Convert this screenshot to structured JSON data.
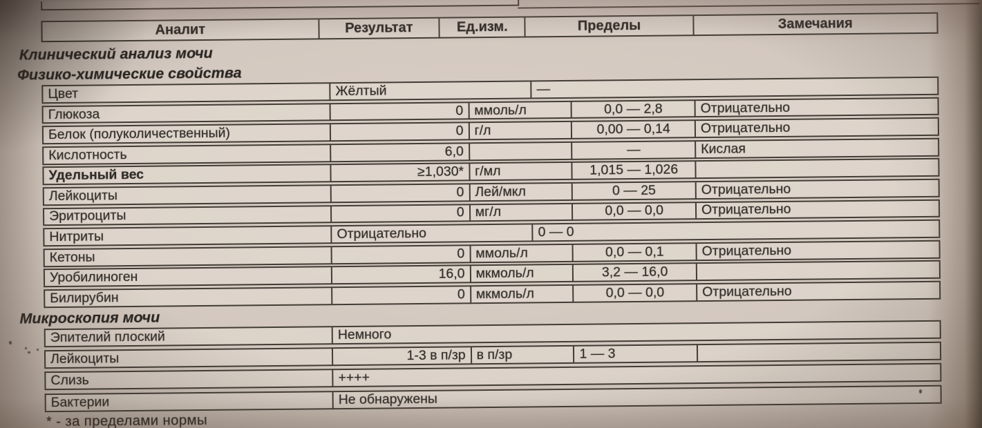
{
  "colors": {
    "paper": "#d2c7be",
    "line": "#413c35",
    "ink": "#2f2b27"
  },
  "table": {
    "columns": [
      "Аналит",
      "Результат",
      "Ед.изм.",
      "Пределы",
      "Замечания"
    ],
    "footnote": "* - за пределами нормы",
    "sections": [
      {
        "title": "Клинический анализ мочи",
        "rows": []
      },
      {
        "title": "Физико-химические свойства",
        "rows": [
          {
            "cells": [
              {
                "t": "Цвет",
                "c": "label",
                "a": "left"
              },
              {
                "t": "Жёлтый",
                "c": "resultwide",
                "a": "left"
              },
              {
                "t": "—",
                "c": "restwide",
                "a": "left"
              }
            ]
          },
          {
            "cells": [
              {
                "t": "Глюкоза",
                "c": "label",
                "a": "left"
              },
              {
                "t": "0",
                "c": "result",
                "a": "right"
              },
              {
                "t": "ммоль/л",
                "c": "units",
                "a": "left"
              },
              {
                "t": "0,0 — 2,8",
                "c": "limits",
                "a": "center"
              },
              {
                "t": "Отрицательно",
                "c": "remarks",
                "a": "left"
              }
            ]
          },
          {
            "cells": [
              {
                "t": "Белок (полуколичественный)",
                "c": "label",
                "a": "left"
              },
              {
                "t": "0",
                "c": "result",
                "a": "right"
              },
              {
                "t": "г/л",
                "c": "units",
                "a": "left"
              },
              {
                "t": "0,00 — 0,14",
                "c": "limits",
                "a": "center"
              },
              {
                "t": "Отрицательно",
                "c": "remarks",
                "a": "left"
              }
            ]
          },
          {
            "cells": [
              {
                "t": "Кислотность",
                "c": "label",
                "a": "left"
              },
              {
                "t": "6,0",
                "c": "result",
                "a": "right"
              },
              {
                "t": "",
                "c": "units",
                "a": "left"
              },
              {
                "t": "—",
                "c": "limits",
                "a": "center"
              },
              {
                "t": "Кислая",
                "c": "remarks",
                "a": "left"
              }
            ]
          },
          {
            "cells": [
              {
                "t": "Удельный вес",
                "c": "label",
                "a": "left",
                "b": true
              },
              {
                "t": "≥1,030*",
                "c": "result",
                "a": "right"
              },
              {
                "t": "г/мл",
                "c": "units",
                "a": "left"
              },
              {
                "t": "1,015 — 1,026",
                "c": "limits",
                "a": "center"
              },
              {
                "t": "",
                "c": "remarks",
                "a": "left"
              }
            ]
          },
          {
            "cells": [
              {
                "t": "Лейкоциты",
                "c": "label",
                "a": "left"
              },
              {
                "t": "0",
                "c": "result",
                "a": "right"
              },
              {
                "t": "Лей/мкл",
                "c": "units",
                "a": "left"
              },
              {
                "t": "0 — 25",
                "c": "limits",
                "a": "center"
              },
              {
                "t": "Отрицательно",
                "c": "remarks",
                "a": "left"
              }
            ]
          },
          {
            "cells": [
              {
                "t": "Эритроциты",
                "c": "label",
                "a": "left"
              },
              {
                "t": "0",
                "c": "result",
                "a": "right"
              },
              {
                "t": "мг/л",
                "c": "units",
                "a": "left"
              },
              {
                "t": "0,0 — 0,0",
                "c": "limits",
                "a": "center"
              },
              {
                "t": "Отрицательно",
                "c": "remarks",
                "a": "left"
              }
            ]
          },
          {
            "cells": [
              {
                "t": "Нитриты",
                "c": "label",
                "a": "left"
              },
              {
                "t": "Отрицательно",
                "c": "resultwide",
                "a": "left"
              },
              {
                "t": "0 — 0",
                "c": "restwide",
                "a": "left"
              }
            ]
          },
          {
            "cells": [
              {
                "t": "Кетоны",
                "c": "label",
                "a": "left"
              },
              {
                "t": "0",
                "c": "result",
                "a": "right"
              },
              {
                "t": "ммоль/л",
                "c": "units",
                "a": "left"
              },
              {
                "t": "0,0 — 0,1",
                "c": "limits",
                "a": "center"
              },
              {
                "t": "Отрицательно",
                "c": "remarks",
                "a": "left"
              }
            ]
          },
          {
            "cells": [
              {
                "t": "Уробилиноген",
                "c": "label",
                "a": "left"
              },
              {
                "t": "16,0",
                "c": "result",
                "a": "right"
              },
              {
                "t": "мкмоль/л",
                "c": "units",
                "a": "left"
              },
              {
                "t": "3,2 — 16,0",
                "c": "limits",
                "a": "center"
              },
              {
                "t": "",
                "c": "remarks",
                "a": "left"
              }
            ]
          },
          {
            "cells": [
              {
                "t": "Билирубин",
                "c": "label",
                "a": "left"
              },
              {
                "t": "0",
                "c": "result",
                "a": "right"
              },
              {
                "t": "мкмоль/л",
                "c": "units",
                "a": "left"
              },
              {
                "t": "0,0 — 0,0",
                "c": "limits",
                "a": "center"
              },
              {
                "t": "Отрицательно",
                "c": "remarks",
                "a": "left"
              }
            ]
          }
        ]
      },
      {
        "title": "Микроскопия мочи",
        "rows": [
          {
            "cells": [
              {
                "t": "Эпителий плоский",
                "c": "label",
                "a": "left"
              },
              {
                "t": "Немного",
                "c": "fullrest",
                "a": "left"
              }
            ]
          },
          {
            "cells": [
              {
                "t": "Лейкоциты",
                "c": "label",
                "a": "left"
              },
              {
                "t": "1-3 в п/зр",
                "c": "result",
                "a": "right"
              },
              {
                "t": "в п/зр",
                "c": "units",
                "a": "left"
              },
              {
                "t": "1 — 3",
                "c": "limits",
                "a": "left"
              },
              {
                "t": "",
                "c": "remarks",
                "a": "left"
              }
            ]
          },
          {
            "cells": [
              {
                "t": "Слизь",
                "c": "label",
                "a": "left"
              },
              {
                "t": "++++",
                "c": "fullrest",
                "a": "left"
              }
            ]
          },
          {
            "cells": [
              {
                "t": "Бактерии",
                "c": "label",
                "a": "left"
              },
              {
                "t": "Не обнаружены",
                "c": "fullrest",
                "a": "left"
              }
            ]
          }
        ]
      }
    ]
  }
}
